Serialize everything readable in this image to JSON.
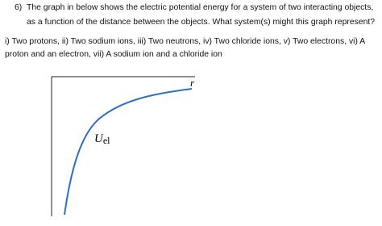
{
  "question": {
    "number": "6)",
    "lines": [
      "The graph in below shows the electric potential energy for a system of two interacting objects,",
      "as a function of the distance between the objects. What system(s) might this graph represent?"
    ]
  },
  "choices": {
    "lines": [
      "i) Two protons, ii) Two sodium ions, iii) Two neutrons, iv) Two chloride ions, v) Two electrons, vi) A",
      "proton and an electron, vii) A sodium ion and a chloride ion"
    ]
  },
  "graph": {
    "x_label": "r",
    "y_label": "U",
    "y_label_subscript": "el"
  }
}
